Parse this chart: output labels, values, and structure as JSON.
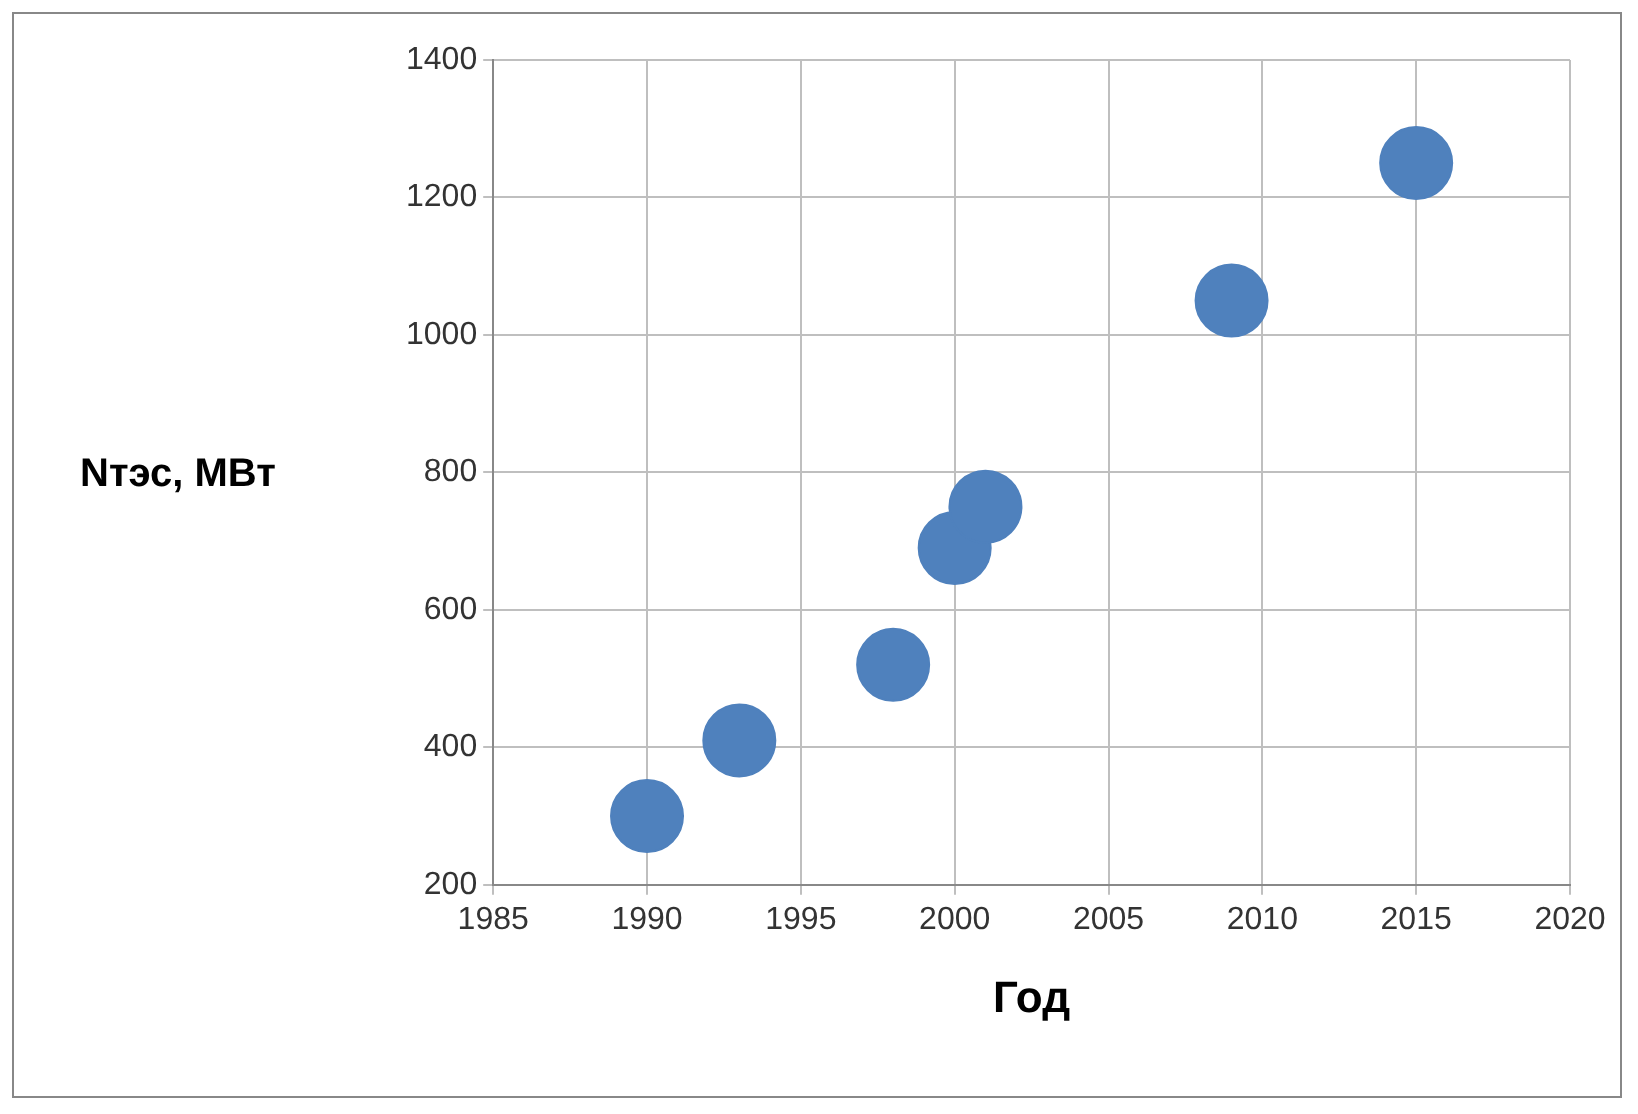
{
  "chart_data": {
    "type": "scatter",
    "xlabel": "Год",
    "ylabel": "Nтэс, МВт",
    "x": [
      1990,
      1993,
      1998,
      2000,
      2001,
      2009,
      2015
    ],
    "series": [
      {
        "color": "#4f81bd",
        "values": [
          300,
          410,
          520,
          690,
          750,
          1050,
          1250
        ]
      }
    ],
    "xlim": [
      1985,
      2020
    ],
    "xticks": [
      1985,
      1990,
      1995,
      2000,
      2005,
      2010,
      2015,
      2020
    ],
    "ylim": [
      200,
      1400
    ],
    "yticks": [
      200,
      400,
      600,
      800,
      1000,
      1200,
      1400
    ],
    "grid": true,
    "legend": false,
    "marker": "circle"
  }
}
